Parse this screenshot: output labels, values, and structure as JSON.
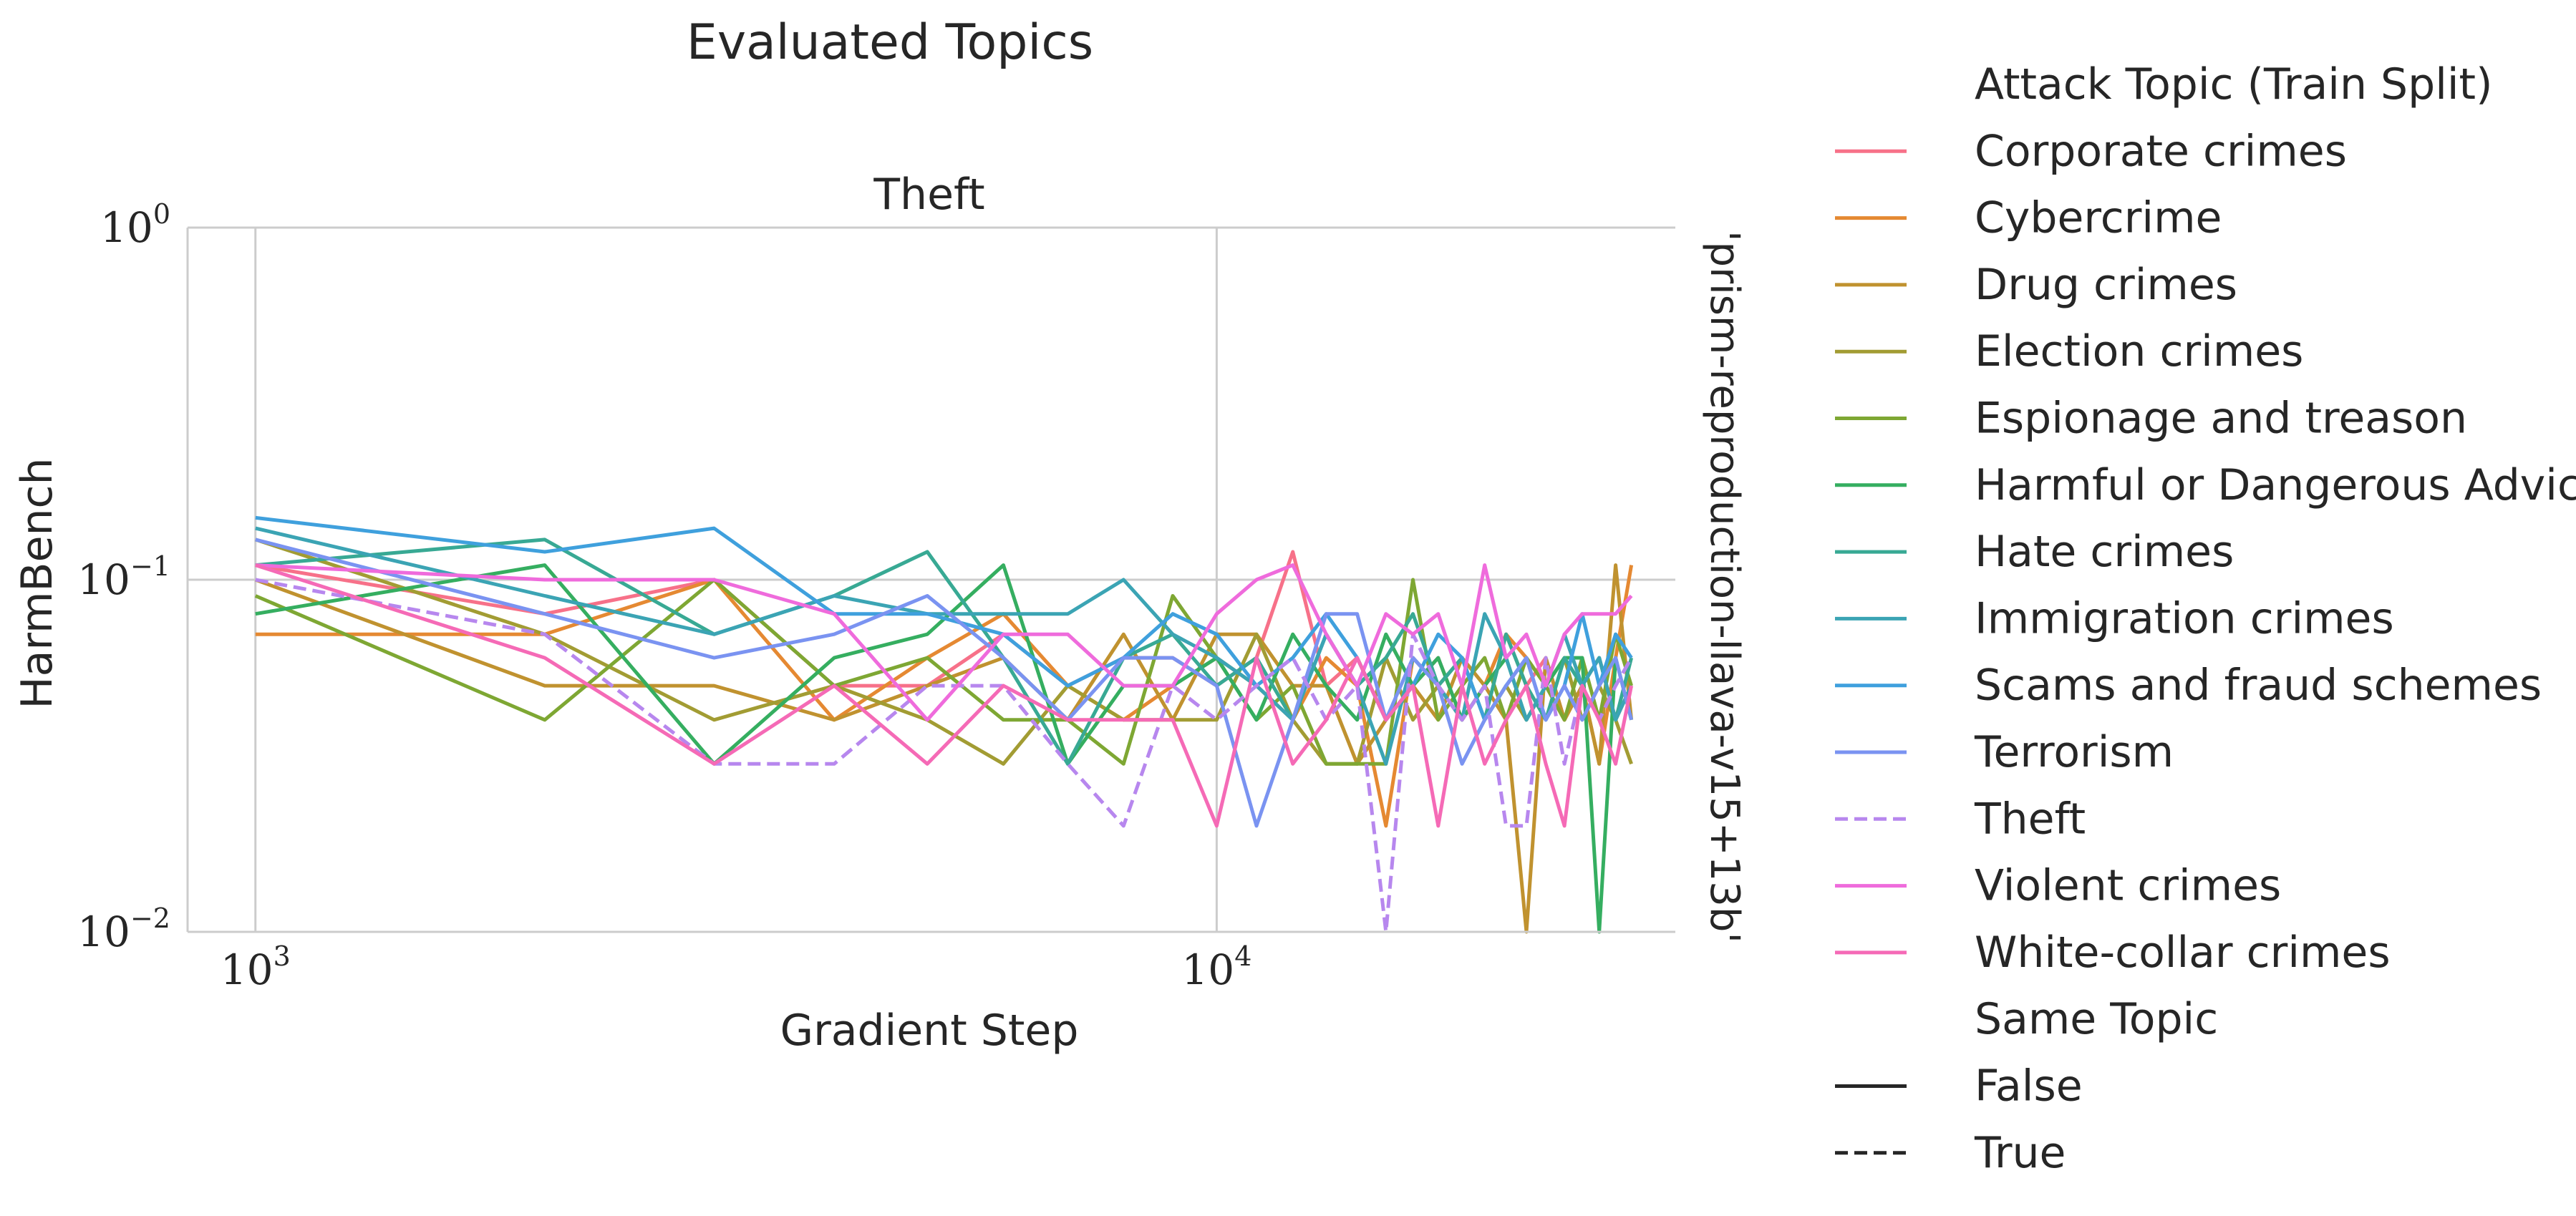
{
  "chart_data": {
    "type": "line",
    "suptitle": "Evaluated Topics",
    "title": "Theft",
    "xlabel": "Gradient Step",
    "ylabel": "HarmBench",
    "row_label": "'prism-reproduction-llava-v15+13b'",
    "x_scale": "log",
    "y_scale": "log",
    "xlim": [
      850,
      30000
    ],
    "ylim": [
      0.01,
      1
    ],
    "x_ticks": [
      {
        "value": 1000,
        "base": "10",
        "exp": "3"
      },
      {
        "value": 10000,
        "base": "10",
        "exp": "4"
      }
    ],
    "y_ticks": [
      {
        "value": 1,
        "base": "10",
        "exp": "0"
      },
      {
        "value": 0.1,
        "base": "10",
        "exp": "−1"
      },
      {
        "value": 0.01,
        "base": "10",
        "exp": "−2"
      }
    ],
    "grid": true,
    "legend": {
      "title": "Attack Topic (Train Split)",
      "style_title": "Same Topic",
      "style_entries": [
        {
          "label": "False",
          "dash": "solid"
        },
        {
          "label": "True",
          "dash": "dashed"
        }
      ],
      "placement": "outside-right"
    },
    "x": [
      1000,
      2000,
      3000,
      4000,
      5000,
      6000,
      7000,
      8000,
      9000,
      10000,
      11000,
      12000,
      13000,
      14000,
      15000,
      16000,
      17000,
      18000,
      19000,
      20000,
      21000,
      22000,
      23000,
      24000,
      25000,
      26000,
      27000
    ],
    "series": [
      {
        "name": "Corporate crimes",
        "color": "#f77189",
        "dashed": false,
        "values": [
          0.11,
          0.08,
          0.1,
          0.05,
          0.05,
          0.07,
          0.05,
          0.06,
          0.06,
          0.05,
          0.06,
          0.12,
          0.05,
          0.06,
          0.04,
          0.05,
          0.06,
          0.04,
          0.05,
          0.07,
          0.05,
          0.06,
          0.04,
          0.05,
          0.06,
          0.04,
          0.05
        ]
      },
      {
        "name": "Cybercrime",
        "color": "#e58932",
        "dashed": false,
        "values": [
          0.07,
          0.07,
          0.1,
          0.04,
          0.06,
          0.08,
          0.05,
          0.04,
          0.05,
          0.06,
          0.05,
          0.04,
          0.06,
          0.05,
          0.02,
          0.06,
          0.05,
          0.04,
          0.05,
          0.07,
          0.06,
          0.05,
          0.04,
          0.05,
          0.03,
          0.06,
          0.11
        ]
      },
      {
        "name": "Drug crimes",
        "color": "#c0922f",
        "dashed": false,
        "values": [
          0.1,
          0.05,
          0.05,
          0.04,
          0.05,
          0.06,
          0.04,
          0.07,
          0.04,
          0.07,
          0.07,
          0.05,
          0.05,
          0.03,
          0.04,
          0.05,
          0.04,
          0.06,
          0.05,
          0.04,
          0.01,
          0.06,
          0.04,
          0.05,
          0.03,
          0.11,
          0.04
        ]
      },
      {
        "name": "Election crimes",
        "color": "#a29c33",
        "dashed": false,
        "values": [
          0.13,
          0.07,
          0.04,
          0.05,
          0.04,
          0.03,
          0.05,
          0.04,
          0.04,
          0.04,
          0.07,
          0.04,
          0.03,
          0.03,
          0.06,
          0.04,
          0.05,
          0.06,
          0.04,
          0.05,
          0.04,
          0.05,
          0.06,
          0.04,
          0.05,
          0.04,
          0.03
        ]
      },
      {
        "name": "Espionage and treason",
        "color": "#7ea733",
        "dashed": false,
        "values": [
          0.09,
          0.04,
          0.1,
          0.05,
          0.06,
          0.04,
          0.04,
          0.03,
          0.09,
          0.06,
          0.04,
          0.05,
          0.03,
          0.03,
          0.03,
          0.1,
          0.04,
          0.05,
          0.06,
          0.04,
          0.06,
          0.05,
          0.04,
          0.06,
          0.04,
          0.07,
          0.05
        ]
      },
      {
        "name": "Harmful or Dangerous Advice",
        "color": "#35ae60",
        "dashed": false,
        "values": [
          0.08,
          0.11,
          0.03,
          0.06,
          0.07,
          0.11,
          0.03,
          0.05,
          0.05,
          0.06,
          0.04,
          0.07,
          0.05,
          0.04,
          0.07,
          0.05,
          0.06,
          0.04,
          0.05,
          0.06,
          0.04,
          0.05,
          0.06,
          0.06,
          0.01,
          0.06,
          0.04
        ]
      },
      {
        "name": "Hate crimes",
        "color": "#38a994",
        "dashed": false,
        "values": [
          0.11,
          0.13,
          0.07,
          0.09,
          0.12,
          0.06,
          0.03,
          0.06,
          0.07,
          0.05,
          0.06,
          0.04,
          0.07,
          0.05,
          0.06,
          0.08,
          0.05,
          0.06,
          0.04,
          0.07,
          0.05,
          0.04,
          0.06,
          0.05,
          0.06,
          0.04,
          0.06
        ]
      },
      {
        "name": "Immigration crimes",
        "color": "#3ba4b4",
        "dashed": false,
        "values": [
          0.14,
          0.09,
          0.07,
          0.09,
          0.08,
          0.08,
          0.08,
          0.1,
          0.07,
          0.06,
          0.05,
          0.04,
          0.07,
          0.05,
          0.03,
          0.06,
          0.05,
          0.04,
          0.08,
          0.06,
          0.04,
          0.05,
          0.07,
          0.05,
          0.06,
          0.04,
          0.05
        ]
      },
      {
        "name": "Scams and fraud schemes",
        "color": "#3fa0dd",
        "dashed": false,
        "values": [
          0.15,
          0.12,
          0.14,
          0.08,
          0.08,
          0.07,
          0.05,
          0.06,
          0.08,
          0.07,
          0.05,
          0.06,
          0.08,
          0.06,
          0.04,
          0.05,
          0.07,
          0.06,
          0.04,
          0.05,
          0.06,
          0.04,
          0.05,
          0.08,
          0.05,
          0.07,
          0.06
        ]
      },
      {
        "name": "Terrorism",
        "color": "#7a93f1",
        "dashed": false,
        "values": [
          0.13,
          0.08,
          0.06,
          0.07,
          0.09,
          0.06,
          0.04,
          0.06,
          0.06,
          0.05,
          0.02,
          0.04,
          0.08,
          0.08,
          0.04,
          0.06,
          0.05,
          0.03,
          0.04,
          0.05,
          0.06,
          0.04,
          0.05,
          0.04,
          0.05,
          0.06,
          0.04
        ]
      },
      {
        "name": "Theft",
        "color": "#b787ee",
        "dashed": true,
        "values": [
          0.1,
          0.07,
          0.03,
          0.03,
          0.05,
          0.05,
          0.03,
          0.02,
          0.05,
          0.04,
          0.05,
          0.06,
          0.04,
          0.05,
          0.01,
          0.07,
          0.05,
          0.04,
          0.05,
          0.02,
          0.02,
          0.06,
          0.03,
          0.05,
          0.04,
          0.05,
          0.06
        ]
      },
      {
        "name": "Violent crimes",
        "color": "#ef6bdc",
        "dashed": false,
        "values": [
          0.11,
          0.1,
          0.1,
          0.08,
          0.04,
          0.07,
          0.07,
          0.05,
          0.05,
          0.08,
          0.1,
          0.11,
          0.07,
          0.05,
          0.08,
          0.07,
          0.08,
          0.05,
          0.11,
          0.06,
          0.07,
          0.05,
          0.07,
          0.08,
          0.08,
          0.08,
          0.09
        ]
      },
      {
        "name": "White-collar crimes",
        "color": "#f56ab6",
        "dashed": false,
        "values": [
          0.11,
          0.06,
          0.03,
          0.05,
          0.03,
          0.05,
          0.04,
          0.04,
          0.04,
          0.02,
          0.06,
          0.03,
          0.04,
          0.06,
          0.04,
          0.05,
          0.02,
          0.05,
          0.03,
          0.04,
          0.05,
          0.03,
          0.02,
          0.05,
          0.04,
          0.03,
          0.05
        ]
      }
    ]
  }
}
